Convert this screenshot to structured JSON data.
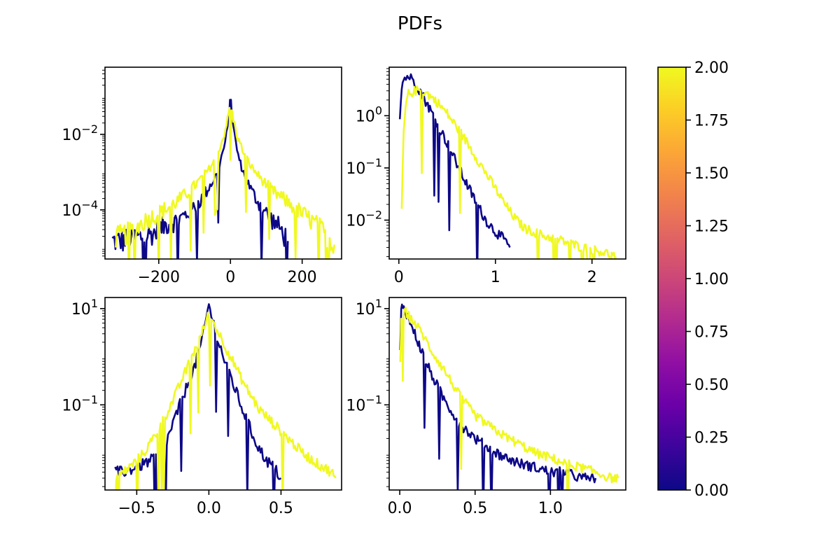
{
  "figure": {
    "title": "PDFs"
  },
  "chart_data": [
    {
      "type": "line",
      "yscale": "log",
      "xlim": [
        -350,
        310
      ],
      "ylim": [
        5e-06,
        0.6
      ],
      "xticks": [
        -200,
        0,
        200
      ],
      "xtick_labels": [
        "−200",
        "0",
        "200"
      ],
      "yticks": [
        0.01,
        0.0001
      ],
      "ytick_labels": [
        "10^-2",
        "10^-4"
      ],
      "series": [
        {
          "color": "#0d0887",
          "noise": 0.32,
          "x": [
            -330,
            -300,
            -270,
            -240,
            -210,
            -180,
            -150,
            -120,
            -100,
            -80,
            -60,
            -40,
            -25,
            -15,
            -8,
            -3,
            0,
            3,
            8,
            15,
            25,
            40,
            60,
            80,
            100,
            120,
            140,
            160
          ],
          "y": [
            1.5e-05,
            1.5e-05,
            1.8e-05,
            2e-05,
            2.5e-05,
            4e-05,
            5e-05,
            8e-05,
            0.00012,
            0.0002,
            0.0004,
            0.0008,
            0.0025,
            0.006,
            0.015,
            0.05,
            0.15,
            0.05,
            0.015,
            0.006,
            0.002,
            0.0008,
            0.0003,
            0.00015,
            8e-05,
            5e-05,
            3e-05,
            1.5e-05
          ]
        },
        {
          "color": "#f0f921",
          "noise": 0.3,
          "x": [
            -320,
            -280,
            -240,
            -200,
            -160,
            -120,
            -90,
            -60,
            -40,
            -20,
            -8,
            0,
            8,
            20,
            40,
            60,
            90,
            120,
            160,
            200,
            240,
            270,
            290
          ],
          "y": [
            1.8e-05,
            2.5e-05,
            5e-05,
            8e-05,
            0.00014,
            0.00028,
            0.00055,
            0.0012,
            0.0026,
            0.008,
            0.025,
            0.065,
            0.025,
            0.008,
            0.0028,
            0.0013,
            0.0006,
            0.0003,
            0.00016,
            8e-05,
            4e-05,
            2e-05,
            1.2e-05
          ]
        }
      ]
    },
    {
      "type": "line",
      "yscale": "log",
      "xlim": [
        -0.1,
        2.35
      ],
      "ylim": [
        0.0018,
        8.5
      ],
      "xticks": [
        0,
        1,
        2
      ],
      "xtick_labels": [
        "0",
        "1",
        "2"
      ],
      "yticks": [
        1,
        0.1,
        0.01
      ],
      "ytick_labels": [
        "10^0",
        "10^-1",
        "10^-2"
      ],
      "series": [
        {
          "color": "#0d0887",
          "noise": 0.28,
          "x": [
            0.01,
            0.03,
            0.06,
            0.1,
            0.15,
            0.2,
            0.3,
            0.4,
            0.5,
            0.6,
            0.7,
            0.8,
            0.9,
            1.0,
            1.05,
            1.1,
            1.15
          ],
          "y": [
            0.9,
            4,
            5.3,
            5.7,
            4.8,
            3.5,
            1.6,
            0.7,
            0.3,
            0.12,
            0.05,
            0.022,
            0.01,
            0.006,
            0.005,
            0.004,
            0.003
          ]
        },
        {
          "color": "#f0f921",
          "noise": 0.26,
          "x": [
            0.03,
            0.05,
            0.08,
            0.1,
            0.15,
            0.2,
            0.25,
            0.3,
            0.4,
            0.5,
            0.6,
            0.7,
            0.8,
            0.9,
            1.0,
            1.1,
            1.2,
            1.3,
            1.5,
            1.7,
            1.9,
            2.1,
            2.25
          ],
          "y": [
            0.016,
            0.5,
            2.0,
            2.6,
            2.9,
            3.1,
            2.9,
            2.6,
            1.8,
            1.1,
            0.6,
            0.32,
            0.16,
            0.08,
            0.04,
            0.02,
            0.011,
            0.007,
            0.005,
            0.004,
            0.003,
            0.0025,
            0.002
          ]
        }
      ]
    },
    {
      "type": "line",
      "yscale": "log",
      "xlim": [
        -0.72,
        0.92
      ],
      "ylim": [
        0.0017,
        17
      ],
      "xticks": [
        -0.5,
        0,
        0.5
      ],
      "xtick_labels": [
        "−0.5",
        "0.0",
        "0.5"
      ],
      "yticks": [
        10,
        0.1
      ],
      "ytick_labels": [
        "10^1",
        "10^-1"
      ],
      "series": [
        {
          "color": "#0d0887",
          "noise": 0.35,
          "x": [
            -0.65,
            -0.6,
            -0.5,
            -0.45,
            -0.4,
            -0.35,
            -0.3,
            -0.25,
            -0.2,
            -0.15,
            -0.1,
            -0.05,
            0,
            0.05,
            0.1,
            0.15,
            0.2,
            0.25,
            0.3,
            0.35,
            0.4,
            0.45,
            0.5
          ],
          "y": [
            0.004,
            0.004,
            0.005,
            0.006,
            0.007,
            0.009,
            0.015,
            0.04,
            0.1,
            0.25,
            0.6,
            2,
            12,
            3,
            1,
            0.4,
            0.15,
            0.06,
            0.025,
            0.012,
            0.007,
            0.005,
            0.003
          ]
        },
        {
          "color": "#f0f921",
          "noise": 0.3,
          "x": [
            -0.65,
            -0.55,
            -0.45,
            -0.35,
            -0.25,
            -0.15,
            -0.05,
            0,
            0.05,
            0.15,
            0.25,
            0.35,
            0.45,
            0.55,
            0.65,
            0.75,
            0.85,
            0.88
          ],
          "y": [
            0.003,
            0.005,
            0.01,
            0.03,
            0.12,
            0.6,
            3,
            8,
            4,
            1,
            0.25,
            0.08,
            0.04,
            0.02,
            0.01,
            0.006,
            0.004,
            0.003
          ]
        }
      ]
    },
    {
      "type": "line",
      "yscale": "log",
      "xlim": [
        -0.07,
        1.5
      ],
      "ylim": [
        0.0017,
        17
      ],
      "xticks": [
        0,
        0.5,
        1
      ],
      "xtick_labels": [
        "0.0",
        "0.5",
        "1.0"
      ],
      "yticks": [
        10,
        0.1
      ],
      "ytick_labels": [
        "10^1",
        "10^-1"
      ],
      "series": [
        {
          "color": "#0d0887",
          "noise": 0.3,
          "x": [
            0.003,
            0.01,
            0.02,
            0.04,
            0.06,
            0.1,
            0.15,
            0.2,
            0.3,
            0.4,
            0.5,
            0.6,
            0.7,
            0.8,
            0.9,
            1.0,
            1.1,
            1.2,
            1.3
          ],
          "y": [
            1.2,
            9,
            12,
            9,
            6,
            3,
            1.2,
            0.5,
            0.12,
            0.04,
            0.02,
            0.012,
            0.008,
            0.006,
            0.005,
            0.004,
            0.004,
            0.003,
            0.003
          ]
        },
        {
          "color": "#f0f921",
          "noise": 0.28,
          "x": [
            0.003,
            0.01,
            0.02,
            0.04,
            0.06,
            0.1,
            0.15,
            0.2,
            0.3,
            0.4,
            0.5,
            0.6,
            0.7,
            0.8,
            0.9,
            1.0,
            1.1,
            1.2,
            1.3,
            1.4,
            1.45
          ],
          "y": [
            0.8,
            5,
            8,
            8.5,
            7,
            5,
            3,
            1.5,
            0.5,
            0.15,
            0.06,
            0.035,
            0.022,
            0.015,
            0.01,
            0.008,
            0.006,
            0.005,
            0.004,
            0.003,
            0.003
          ]
        }
      ]
    },
    {
      "type": "colorbar",
      "cmap": [
        "#0d0887",
        "#3c049b",
        "#6a00a8",
        "#900ea4",
        "#b12a90",
        "#cc4778",
        "#e16462",
        "#f2844b",
        "#fca636",
        "#fcce25",
        "#f0f921"
      ],
      "vmin": 0,
      "vmax": 2,
      "ticks": [
        0,
        0.25,
        0.5,
        0.75,
        1,
        1.25,
        1.5,
        1.75,
        2
      ],
      "tick_labels": [
        "0.00",
        "0.25",
        "0.50",
        "0.75",
        "1.00",
        "1.25",
        "1.50",
        "1.75",
        "2.00"
      ]
    }
  ]
}
